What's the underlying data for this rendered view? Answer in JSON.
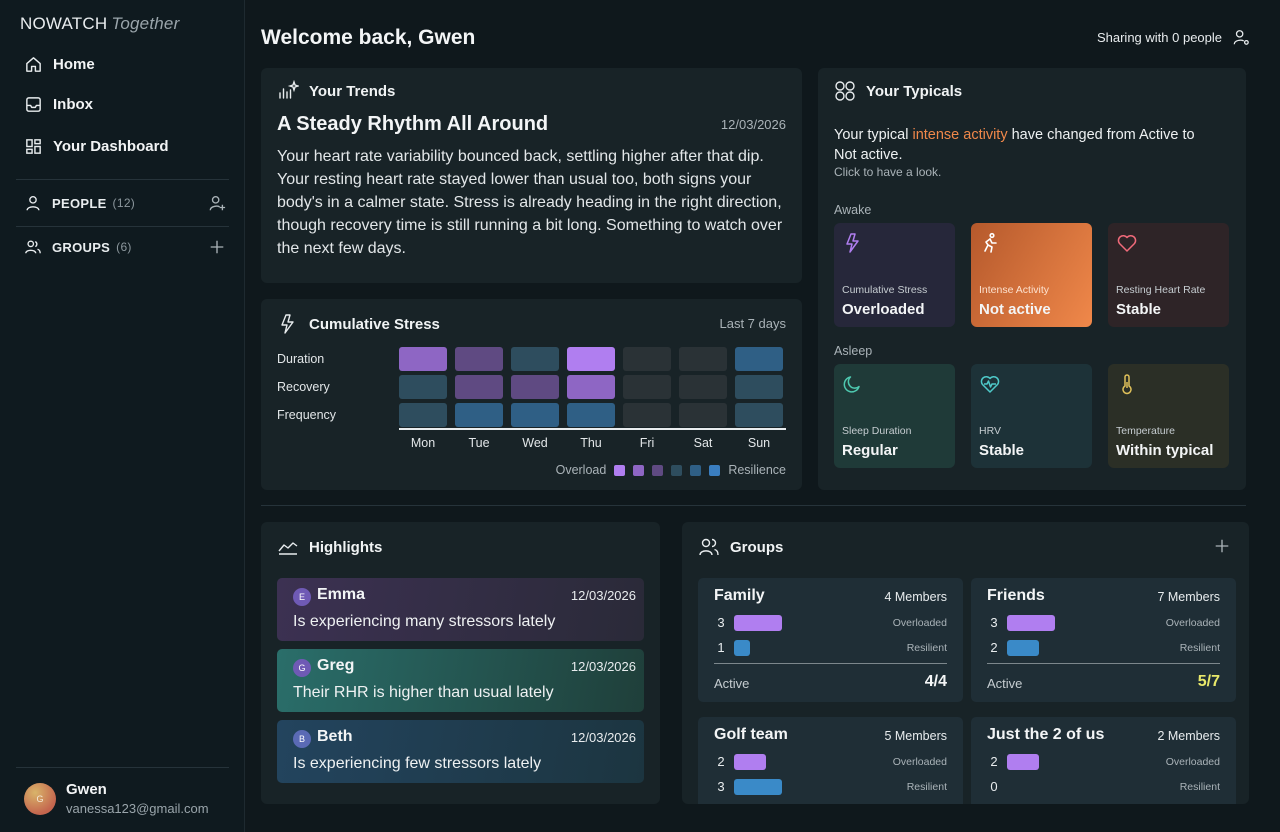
{
  "brand": {
    "name": "NOWATCH",
    "sub": "Together"
  },
  "nav": [
    {
      "label": "Home",
      "icon": "home-icon"
    },
    {
      "label": "Inbox",
      "icon": "inbox-icon"
    },
    {
      "label": "Your Dashboard",
      "icon": "dashboard-icon"
    }
  ],
  "sidebar_sections": {
    "people": {
      "label": "PEOPLE",
      "count": "(12)"
    },
    "groups": {
      "label": "GROUPS",
      "count": "(6)"
    }
  },
  "user": {
    "initial": "G",
    "name": "Gwen",
    "email": "vanessa123@gmail.com"
  },
  "header": {
    "welcome": "Welcome back, Gwen",
    "sharing": "Sharing with 0 people"
  },
  "trends": {
    "heading": "Your Trends",
    "title": "A Steady Rhythm All Around",
    "date": "12/03/2026",
    "body": "Your heart rate variability bounced back, settling higher after that dip. Your resting heart rate stayed lower than usual too, both signs your body's in a calmer state. Stress is already heading in the right direction, though recovery time is still running a bit long. Something to watch over the next few days."
  },
  "stress": {
    "heading": "Cumulative Stress",
    "period": "Last 7 days",
    "legend_left": "Overload",
    "legend_right": "Resilience",
    "colors": [
      "#b07ef0",
      "#8e66c4",
      "#5f4a82",
      "#2e4d5e",
      "#2f5f85",
      "#3a7ec0"
    ],
    "muted_color": "#2a3236"
  },
  "chart_data": {
    "type": "heatmap",
    "title": "Cumulative Stress",
    "x": [
      "Mon",
      "Tue",
      "Wed",
      "Thu",
      "Fri",
      "Sat",
      "Sun"
    ],
    "y": [
      "Duration",
      "Recovery",
      "Frequency"
    ],
    "scale": "level 1 = Overload … level 6 = Resilience, 0 = no data",
    "values": [
      [
        2,
        3,
        4,
        1,
        0,
        0,
        5
      ],
      [
        4,
        3,
        3,
        2,
        0,
        0,
        4
      ],
      [
        4,
        5,
        5,
        5,
        0,
        0,
        4
      ]
    ]
  },
  "typicals": {
    "heading": "Your Typicals",
    "msg_before": "Your typical ",
    "msg_highlight": "intense activity",
    "msg_after": " have changed from Active to Not active.",
    "hint": "Click to have a look.",
    "awake_label": "Awake",
    "asleep_label": "Asleep",
    "awake": [
      {
        "caption": "Cumulative Stress",
        "value": "Overloaded",
        "icon": "lightning-icon"
      },
      {
        "caption": "Intense Activity",
        "value": "Not active",
        "icon": "running-icon"
      },
      {
        "caption": "Resting Heart Rate",
        "value": "Stable",
        "icon": "heart-icon"
      }
    ],
    "asleep": [
      {
        "caption": "Sleep Duration",
        "value": "Regular",
        "icon": "moon-icon"
      },
      {
        "caption": "HRV",
        "value": "Stable",
        "icon": "heart-pulse-icon"
      },
      {
        "caption": "Temperature",
        "value": "Within typical",
        "icon": "thermometer-icon"
      }
    ]
  },
  "highlights": {
    "heading": "Highlights",
    "items": [
      {
        "initial": "E",
        "name": "Emma",
        "date": "12/03/2026",
        "text": "Is experiencing many stressors lately"
      },
      {
        "initial": "G",
        "name": "Greg",
        "date": "12/03/2026",
        "text": "Their RHR is higher than usual lately"
      },
      {
        "initial": "B",
        "name": "Beth",
        "date": "12/03/2026",
        "text": "Is experiencing few stressors lately"
      }
    ]
  },
  "groups": {
    "heading": "Groups",
    "overloaded_label": "Overloaded",
    "resilient_label": "Resilient",
    "active_label": "Active",
    "items": [
      {
        "name": "Family",
        "members": "4 Members",
        "overloaded": 3,
        "resilient": 1,
        "active": "4/4",
        "ratio_color": "#f3f5f6"
      },
      {
        "name": "Friends",
        "members": "7 Members",
        "overloaded": 3,
        "resilient": 2,
        "active": "5/7",
        "ratio_color": "#e8e86a"
      },
      {
        "name": "Golf team",
        "members": "5 Members",
        "overloaded": 2,
        "resilient": 3,
        "active": "",
        "ratio_color": "#f3f5f6"
      },
      {
        "name": "Just the 2 of us",
        "members": "2 Members",
        "overloaded": 2,
        "resilient": 0,
        "active": "",
        "ratio_color": "#f3f5f6"
      }
    ]
  }
}
